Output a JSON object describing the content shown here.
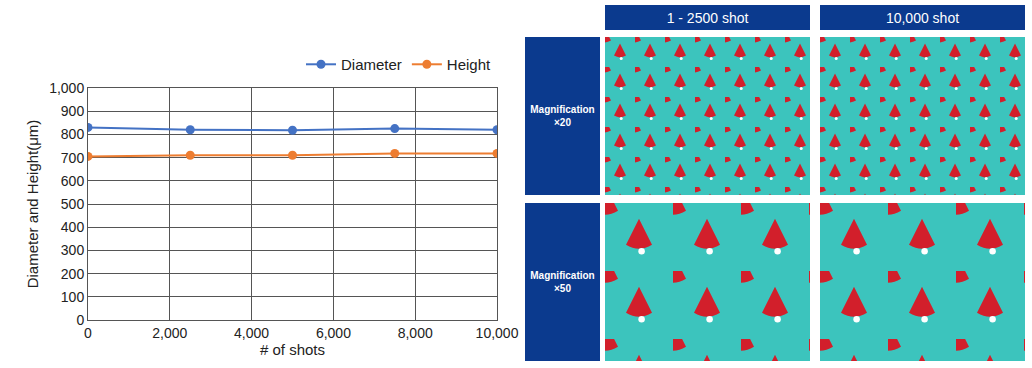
{
  "chart_data": {
    "type": "line",
    "x": [
      0,
      2500,
      5000,
      7500,
      10000
    ],
    "series": [
      {
        "name": "Diameter",
        "color": "#4472c4",
        "marker": "circle",
        "values": [
          830,
          820,
          818,
          825,
          820
        ]
      },
      {
        "name": "Height",
        "color": "#ed7d31",
        "marker": "circle",
        "values": [
          705,
          710,
          710,
          718,
          718
        ]
      }
    ],
    "x_label": "# of shots",
    "y_label": "Diameter and Height(μm)",
    "xlim": [
      0,
      10000
    ],
    "xticks": [
      0,
      {
        "value": 2000,
        "label": "2,000"
      },
      {
        "value": 4000,
        "label": "4,000"
      },
      {
        "value": 6000,
        "label": "6,000"
      },
      {
        "value": 8000,
        "label": "8,000"
      },
      {
        "value": 10000,
        "label": "10,000"
      }
    ],
    "ylim": [
      0,
      1000
    ],
    "yticks": [
      0,
      100,
      200,
      300,
      400,
      500,
      600,
      700,
      800,
      900,
      {
        "value": 1000,
        "label": "1,000"
      }
    ],
    "grid": true,
    "legend": "top"
  },
  "image_grid": {
    "columns": [
      "1 - 2500 shot",
      "10,000 shot"
    ],
    "rows": [
      "Magnification ×20",
      "Magnification ×50"
    ]
  }
}
